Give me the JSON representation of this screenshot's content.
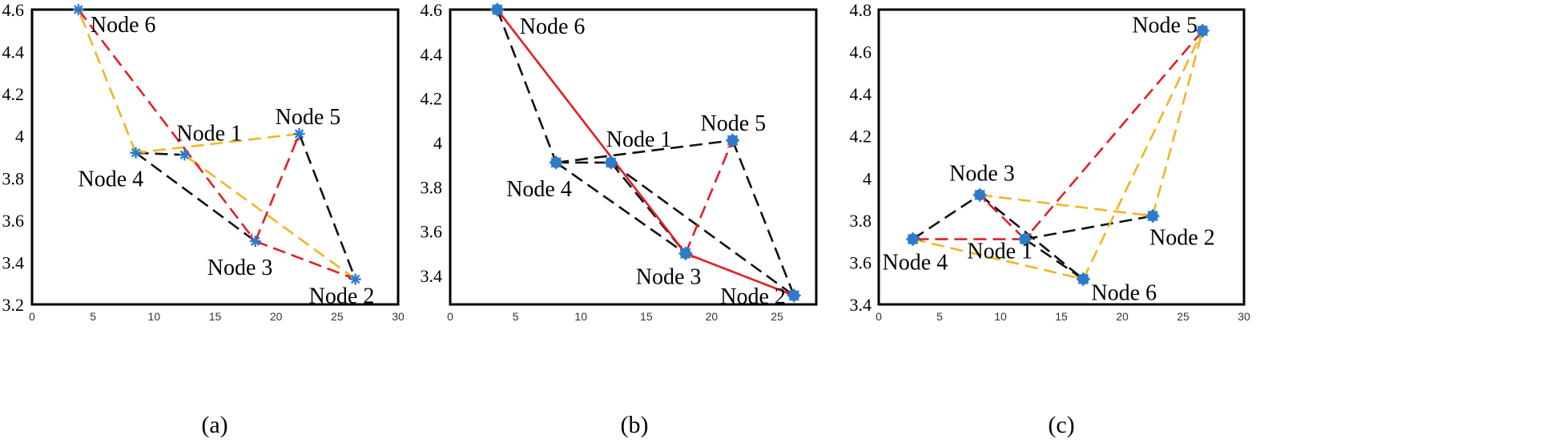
{
  "colors": {
    "black_edge": "#111111",
    "red_edge": "#e0202a",
    "yellow_edge": "#f0b624",
    "node": "#2e7bc9"
  },
  "panels": [
    {
      "label": "(a)",
      "xlim": [
        0,
        30
      ],
      "ylim": [
        3.2,
        4.6
      ],
      "xticks": [
        "0",
        "5",
        "10",
        "15",
        "20",
        "25",
        "30"
      ],
      "yticks": [
        "3.2",
        "3.4",
        "3.6",
        "3.8",
        "4",
        "4.2",
        "4.4",
        "4.6"
      ],
      "node_style": "star",
      "nodes": [
        {
          "id": "Node 1",
          "x": 12.5,
          "y": 3.91
        },
        {
          "id": "Node 2",
          "x": 26.5,
          "y": 3.32
        },
        {
          "id": "Node 3",
          "x": 18.3,
          "y": 3.5
        },
        {
          "id": "Node 4",
          "x": 8.5,
          "y": 3.92
        },
        {
          "id": "Node 5",
          "x": 21.9,
          "y": 4.01
        },
        {
          "id": "Node 6",
          "x": 3.8,
          "y": 4.6
        }
      ],
      "edges": [
        {
          "from": "Node 4",
          "to": "Node 1",
          "color": "black",
          "arrow": false
        },
        {
          "from": "Node 4",
          "to": "Node 3",
          "color": "black",
          "arrow": false
        },
        {
          "from": "Node 5",
          "to": "Node 2",
          "color": "black",
          "arrow": false
        },
        {
          "from": "Node 6",
          "to": "Node 3",
          "color": "red",
          "arrow": true
        },
        {
          "from": "Node 3",
          "to": "Node 5",
          "color": "red",
          "arrow": true
        },
        {
          "from": "Node 3",
          "to": "Node 2",
          "color": "red",
          "arrow": true
        },
        {
          "from": "Node 5",
          "to": "Node 4",
          "color": "yellow",
          "arrow": true
        },
        {
          "from": "Node 4",
          "to": "Node 6",
          "color": "yellow",
          "arrow": true
        },
        {
          "from": "Node 2",
          "to": "Node 1",
          "color": "yellow",
          "arrow": true
        }
      ]
    },
    {
      "label": "(b)",
      "xlim": [
        0,
        28
      ],
      "ylim": [
        3.27,
        4.6
      ],
      "xticks": [
        "0",
        "5",
        "10",
        "15",
        "20",
        "25"
      ],
      "yticks": [
        "3.4",
        "3.6",
        "3.8",
        "4",
        "4.2",
        "4.4",
        "4.6"
      ],
      "node_style": "disc",
      "nodes": [
        {
          "id": "Node 1",
          "x": 12.3,
          "y": 3.91
        },
        {
          "id": "Node 2",
          "x": 26.3,
          "y": 3.31
        },
        {
          "id": "Node 3",
          "x": 18.0,
          "y": 3.5
        },
        {
          "id": "Node 4",
          "x": 8.1,
          "y": 3.91
        },
        {
          "id": "Node 5",
          "x": 21.6,
          "y": 4.01
        },
        {
          "id": "Node 6",
          "x": 3.6,
          "y": 4.6
        }
      ],
      "edges": [
        {
          "from": "Node 6",
          "to": "Node 4",
          "color": "black",
          "arrow": false
        },
        {
          "from": "Node 4",
          "to": "Node 5",
          "color": "black",
          "arrow": false
        },
        {
          "from": "Node 4",
          "to": "Node 1",
          "color": "black",
          "arrow": false
        },
        {
          "from": "Node 4",
          "to": "Node 3",
          "color": "black",
          "arrow": false
        },
        {
          "from": "Node 1",
          "to": "Node 2",
          "color": "black",
          "arrow": false
        },
        {
          "from": "Node 5",
          "to": "Node 2",
          "color": "black",
          "arrow": false
        },
        {
          "from": "Node 1",
          "to": "Node 3",
          "color": "black",
          "arrow": false
        },
        {
          "from": "Node 3",
          "to": "Node 6",
          "color": "red",
          "arrow": true
        },
        {
          "from": "Node 6",
          "to": "Node 3",
          "color": "red",
          "arrow": true
        },
        {
          "from": "Node 3",
          "to": "Node 5",
          "color": "red",
          "arrow": true
        },
        {
          "from": "Node 2",
          "to": "Node 3",
          "color": "red",
          "arrow": true
        },
        {
          "from": "Node 3",
          "to": "Node 2",
          "color": "red",
          "arrow": true
        }
      ]
    },
    {
      "label": "(c)",
      "xlim": [
        0,
        30
      ],
      "ylim": [
        3.4,
        4.8
      ],
      "xticks": [
        "0",
        "5",
        "10",
        "15",
        "20",
        "25",
        "30"
      ],
      "yticks": [
        "3.4",
        "3.6",
        "3.8",
        "4",
        "4.2",
        "4.4",
        "4.6",
        "4.8"
      ],
      "node_style": "disc",
      "nodes": [
        {
          "id": "Node 1",
          "x": 12.0,
          "y": 3.71
        },
        {
          "id": "Node 2",
          "x": 22.5,
          "y": 3.82
        },
        {
          "id": "Node 3",
          "x": 8.3,
          "y": 3.92
        },
        {
          "id": "Node 4",
          "x": 2.8,
          "y": 3.71
        },
        {
          "id": "Node 5",
          "x": 26.6,
          "y": 4.7
        },
        {
          "id": "Node 6",
          "x": 16.8,
          "y": 3.52
        }
      ],
      "edges": [
        {
          "from": "Node 4",
          "to": "Node 3",
          "color": "black",
          "arrow": false
        },
        {
          "from": "Node 3",
          "to": "Node 6",
          "color": "black",
          "arrow": false
        },
        {
          "from": "Node 1",
          "to": "Node 2",
          "color": "black",
          "arrow": false
        },
        {
          "from": "Node 1",
          "to": "Node 6",
          "color": "black",
          "arrow": false
        },
        {
          "from": "Node 1",
          "to": "Node 4",
          "color": "red",
          "arrow": true
        },
        {
          "from": "Node 1",
          "to": "Node 3",
          "color": "red",
          "arrow": true
        },
        {
          "from": "Node 5",
          "to": "Node 1",
          "color": "red",
          "arrow": true
        },
        {
          "from": "Node 3",
          "to": "Node 2",
          "color": "yellow",
          "arrow": true
        },
        {
          "from": "Node 6",
          "to": "Node 5",
          "color": "yellow",
          "arrow": true
        },
        {
          "from": "Node 2",
          "to": "Node 5",
          "color": "yellow",
          "arrow": true
        },
        {
          "from": "Node 4",
          "to": "Node 6",
          "color": "yellow",
          "arrow": true
        }
      ]
    }
  ]
}
